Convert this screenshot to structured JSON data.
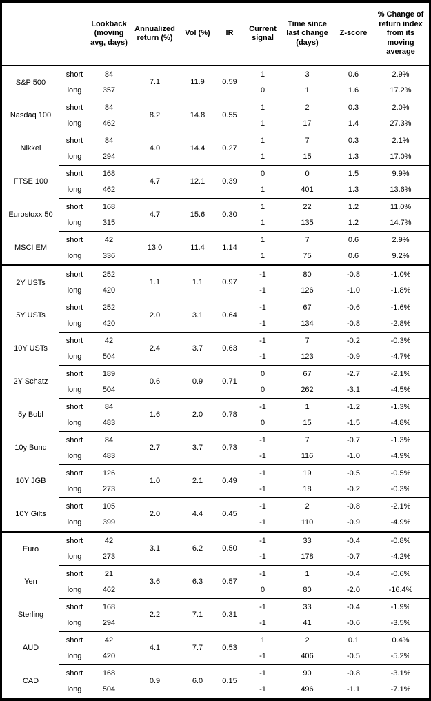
{
  "colors": {
    "text": "#000000",
    "background": "#ffffff",
    "border": "#000000"
  },
  "table": {
    "columns": [
      {
        "key": "asset",
        "label": ""
      },
      {
        "key": "leg",
        "label": ""
      },
      {
        "key": "lookback",
        "label": "Lookback\n(moving\navg, days)"
      },
      {
        "key": "annualized_return",
        "label": "Annualized\nreturn (%)"
      },
      {
        "key": "vol",
        "label": "Vol (%)"
      },
      {
        "key": "ir",
        "label": "IR"
      },
      {
        "key": "signal",
        "label": "Current\nsignal"
      },
      {
        "key": "time_since",
        "label": "Time since\nlast change\n(days)"
      },
      {
        "key": "zscore",
        "label": "Z-score"
      },
      {
        "key": "pct_change",
        "label": "% Change of\nreturn index\nfrom its\nmoving\naverage"
      }
    ],
    "sections": [
      {
        "name": "equities",
        "assets": [
          {
            "name": "S&P 500",
            "annualized_return": "7.1",
            "vol": "11.9",
            "ir": "0.59",
            "legs": [
              {
                "label": "short",
                "lookback": "84",
                "signal": "1",
                "time_since": "3",
                "zscore": "0.6",
                "pct_change": "2.9%"
              },
              {
                "label": "long",
                "lookback": "357",
                "signal": "0",
                "time_since": "1",
                "zscore": "1.6",
                "pct_change": "17.2%"
              }
            ]
          },
          {
            "name": "Nasdaq 100",
            "annualized_return": "8.2",
            "vol": "14.8",
            "ir": "0.55",
            "legs": [
              {
                "label": "short",
                "lookback": "84",
                "signal": "1",
                "time_since": "2",
                "zscore": "0.3",
                "pct_change": "2.0%"
              },
              {
                "label": "long",
                "lookback": "462",
                "signal": "1",
                "time_since": "17",
                "zscore": "1.4",
                "pct_change": "27.3%"
              }
            ]
          },
          {
            "name": "Nikkei",
            "annualized_return": "4.0",
            "vol": "14.4",
            "ir": "0.27",
            "legs": [
              {
                "label": "short",
                "lookback": "84",
                "signal": "1",
                "time_since": "7",
                "zscore": "0.3",
                "pct_change": "2.1%"
              },
              {
                "label": "long",
                "lookback": "294",
                "signal": "1",
                "time_since": "15",
                "zscore": "1.3",
                "pct_change": "17.0%"
              }
            ]
          },
          {
            "name": "FTSE 100",
            "annualized_return": "4.7",
            "vol": "12.1",
            "ir": "0.39",
            "legs": [
              {
                "label": "short",
                "lookback": "168",
                "signal": "0",
                "time_since": "0",
                "zscore": "1.5",
                "pct_change": "9.9%"
              },
              {
                "label": "long",
                "lookback": "462",
                "signal": "1",
                "time_since": "401",
                "zscore": "1.3",
                "pct_change": "13.6%"
              }
            ]
          },
          {
            "name": "Eurostoxx 50",
            "annualized_return": "4.7",
            "vol": "15.6",
            "ir": "0.30",
            "legs": [
              {
                "label": "short",
                "lookback": "168",
                "signal": "1",
                "time_since": "22",
                "zscore": "1.2",
                "pct_change": "11.0%"
              },
              {
                "label": "long",
                "lookback": "315",
                "signal": "1",
                "time_since": "135",
                "zscore": "1.2",
                "pct_change": "14.7%"
              }
            ]
          },
          {
            "name": "MSCI EM",
            "annualized_return": "13.0",
            "vol": "11.4",
            "ir": "1.14",
            "legs": [
              {
                "label": "short",
                "lookback": "42",
                "signal": "1",
                "time_since": "7",
                "zscore": "0.6",
                "pct_change": "2.9%"
              },
              {
                "label": "long",
                "lookback": "336",
                "signal": "1",
                "time_since": "75",
                "zscore": "0.6",
                "pct_change": "9.2%"
              }
            ]
          }
        ]
      },
      {
        "name": "bonds",
        "assets": [
          {
            "name": "2Y USTs",
            "annualized_return": "1.1",
            "vol": "1.1",
            "ir": "0.97",
            "legs": [
              {
                "label": "short",
                "lookback": "252",
                "signal": "-1",
                "time_since": "80",
                "zscore": "-0.8",
                "pct_change": "-1.0%"
              },
              {
                "label": "long",
                "lookback": "420",
                "signal": "-1",
                "time_since": "126",
                "zscore": "-1.0",
                "pct_change": "-1.8%"
              }
            ]
          },
          {
            "name": "5Y USTs",
            "annualized_return": "2.0",
            "vol": "3.1",
            "ir": "0.64",
            "legs": [
              {
                "label": "short",
                "lookback": "252",
                "signal": "-1",
                "time_since": "67",
                "zscore": "-0.6",
                "pct_change": "-1.6%"
              },
              {
                "label": "long",
                "lookback": "420",
                "signal": "-1",
                "time_since": "134",
                "zscore": "-0.8",
                "pct_change": "-2.8%"
              }
            ]
          },
          {
            "name": "10Y USTs",
            "annualized_return": "2.4",
            "vol": "3.7",
            "ir": "0.63",
            "legs": [
              {
                "label": "short",
                "lookback": "42",
                "signal": "-1",
                "time_since": "7",
                "zscore": "-0.2",
                "pct_change": "-0.3%"
              },
              {
                "label": "long",
                "lookback": "504",
                "signal": "-1",
                "time_since": "123",
                "zscore": "-0.9",
                "pct_change": "-4.7%"
              }
            ]
          },
          {
            "name": "2Y Schatz",
            "annualized_return": "0.6",
            "vol": "0.9",
            "ir": "0.71",
            "legs": [
              {
                "label": "short",
                "lookback": "189",
                "signal": "0",
                "time_since": "67",
                "zscore": "-2.7",
                "pct_change": "-2.1%"
              },
              {
                "label": "long",
                "lookback": "504",
                "signal": "0",
                "time_since": "262",
                "zscore": "-3.1",
                "pct_change": "-4.5%"
              }
            ]
          },
          {
            "name": "5y Bobl",
            "annualized_return": "1.6",
            "vol": "2.0",
            "ir": "0.78",
            "legs": [
              {
                "label": "short",
                "lookback": "84",
                "signal": "-1",
                "time_since": "1",
                "zscore": "-1.2",
                "pct_change": "-1.3%"
              },
              {
                "label": "long",
                "lookback": "483",
                "signal": "0",
                "time_since": "15",
                "zscore": "-1.5",
                "pct_change": "-4.8%"
              }
            ]
          },
          {
            "name": "10y Bund",
            "annualized_return": "2.7",
            "vol": "3.7",
            "ir": "0.73",
            "legs": [
              {
                "label": "short",
                "lookback": "84",
                "signal": "-1",
                "time_since": "7",
                "zscore": "-0.7",
                "pct_change": "-1.3%"
              },
              {
                "label": "long",
                "lookback": "483",
                "signal": "-1",
                "time_since": "116",
                "zscore": "-1.0",
                "pct_change": "-4.9%"
              }
            ]
          },
          {
            "name": "10Y JGB",
            "annualized_return": "1.0",
            "vol": "2.1",
            "ir": "0.49",
            "legs": [
              {
                "label": "short",
                "lookback": "126",
                "signal": "-1",
                "time_since": "19",
                "zscore": "-0.5",
                "pct_change": "-0.5%"
              },
              {
                "label": "long",
                "lookback": "273",
                "signal": "-1",
                "time_since": "18",
                "zscore": "-0.2",
                "pct_change": "-0.3%"
              }
            ]
          },
          {
            "name": "10Y Gilts",
            "annualized_return": "2.0",
            "vol": "4.4",
            "ir": "0.45",
            "legs": [
              {
                "label": "short",
                "lookback": "105",
                "signal": "-1",
                "time_since": "2",
                "zscore": "-0.8",
                "pct_change": "-2.1%"
              },
              {
                "label": "long",
                "lookback": "399",
                "signal": "-1",
                "time_since": "110",
                "zscore": "-0.9",
                "pct_change": "-4.9%"
              }
            ]
          }
        ]
      },
      {
        "name": "fx",
        "assets": [
          {
            "name": "Euro",
            "annualized_return": "3.1",
            "vol": "6.2",
            "ir": "0.50",
            "legs": [
              {
                "label": "short",
                "lookback": "42",
                "signal": "-1",
                "time_since": "33",
                "zscore": "-0.4",
                "pct_change": "-0.8%"
              },
              {
                "label": "long",
                "lookback": "273",
                "signal": "-1",
                "time_since": "178",
                "zscore": "-0.7",
                "pct_change": "-4.2%"
              }
            ]
          },
          {
            "name": "Yen",
            "annualized_return": "3.6",
            "vol": "6.3",
            "ir": "0.57",
            "legs": [
              {
                "label": "short",
                "lookback": "21",
                "signal": "-1",
                "time_since": "1",
                "zscore": "-0.4",
                "pct_change": "-0.6%"
              },
              {
                "label": "long",
                "lookback": "462",
                "signal": "0",
                "time_since": "80",
                "zscore": "-2.0",
                "pct_change": "-16.4%"
              }
            ]
          },
          {
            "name": "Sterling",
            "annualized_return": "2.2",
            "vol": "7.1",
            "ir": "0.31",
            "legs": [
              {
                "label": "short",
                "lookback": "168",
                "signal": "-1",
                "time_since": "33",
                "zscore": "-0.4",
                "pct_change": "-1.9%"
              },
              {
                "label": "long",
                "lookback": "294",
                "signal": "-1",
                "time_since": "41",
                "zscore": "-0.6",
                "pct_change": "-3.5%"
              }
            ]
          },
          {
            "name": "AUD",
            "annualized_return": "4.1",
            "vol": "7.7",
            "ir": "0.53",
            "legs": [
              {
                "label": "short",
                "lookback": "42",
                "signal": "1",
                "time_since": "2",
                "zscore": "0.1",
                "pct_change": "0.4%"
              },
              {
                "label": "long",
                "lookback": "420",
                "signal": "-1",
                "time_since": "406",
                "zscore": "-0.5",
                "pct_change": "-5.2%"
              }
            ]
          },
          {
            "name": "CAD",
            "annualized_return": "0.9",
            "vol": "6.0",
            "ir": "0.15",
            "legs": [
              {
                "label": "short",
                "lookback": "168",
                "signal": "-1",
                "time_since": "90",
                "zscore": "-0.8",
                "pct_change": "-3.1%"
              },
              {
                "label": "long",
                "lookback": "504",
                "signal": "-1",
                "time_since": "496",
                "zscore": "-1.1",
                "pct_change": "-7.1%"
              }
            ]
          }
        ]
      }
    ]
  }
}
